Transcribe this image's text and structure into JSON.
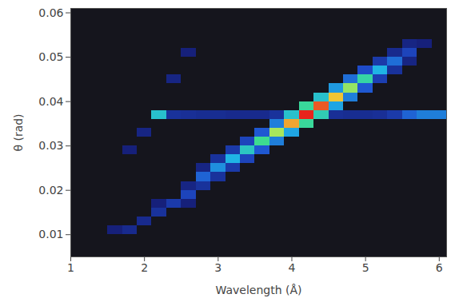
{
  "chart_data": {
    "type": "heatmap",
    "xlabel": "Wavelength (Å)",
    "ylabel": "θ (rad)",
    "xlim": [
      1,
      6.1
    ],
    "ylim": [
      0.005,
      0.061
    ],
    "xticks": [
      1,
      2,
      3,
      4,
      5,
      6
    ],
    "yticks": [
      0.01,
      0.02,
      0.03,
      0.04,
      0.05,
      0.06
    ],
    "cell_width": 0.2,
    "cell_height": 0.002,
    "cells": [
      [
        1.6,
        0.011,
        0.08
      ],
      [
        1.8,
        0.011,
        0.12
      ],
      [
        2.0,
        0.013,
        0.12
      ],
      [
        2.2,
        0.015,
        0.15
      ],
      [
        2.2,
        0.017,
        0.08
      ],
      [
        2.4,
        0.017,
        0.18
      ],
      [
        2.6,
        0.019,
        0.22
      ],
      [
        2.6,
        0.017,
        0.08
      ],
      [
        2.6,
        0.021,
        0.1
      ],
      [
        2.8,
        0.023,
        0.3
      ],
      [
        2.8,
        0.021,
        0.15
      ],
      [
        2.8,
        0.025,
        0.1
      ],
      [
        3.0,
        0.025,
        0.38
      ],
      [
        3.0,
        0.023,
        0.15
      ],
      [
        3.0,
        0.027,
        0.15
      ],
      [
        3.2,
        0.027,
        0.45
      ],
      [
        3.2,
        0.025,
        0.18
      ],
      [
        3.2,
        0.029,
        0.18
      ],
      [
        3.4,
        0.029,
        0.52
      ],
      [
        3.4,
        0.027,
        0.22
      ],
      [
        3.4,
        0.031,
        0.22
      ],
      [
        3.6,
        0.031,
        0.62
      ],
      [
        3.6,
        0.029,
        0.28
      ],
      [
        3.6,
        0.033,
        0.28
      ],
      [
        3.8,
        0.033,
        0.74
      ],
      [
        3.8,
        0.031,
        0.35
      ],
      [
        3.8,
        0.035,
        0.35
      ],
      [
        4.0,
        0.035,
        0.88
      ],
      [
        4.0,
        0.033,
        0.42
      ],
      [
        4.0,
        0.037,
        0.5
      ],
      [
        4.2,
        0.037,
        1.0
      ],
      [
        4.2,
        0.035,
        0.6
      ],
      [
        4.2,
        0.039,
        0.6
      ],
      [
        4.4,
        0.039,
        0.95
      ],
      [
        4.4,
        0.037,
        0.55
      ],
      [
        4.4,
        0.041,
        0.5
      ],
      [
        4.6,
        0.041,
        0.85
      ],
      [
        4.6,
        0.039,
        0.42
      ],
      [
        4.6,
        0.043,
        0.4
      ],
      [
        4.8,
        0.043,
        0.72
      ],
      [
        4.8,
        0.041,
        0.35
      ],
      [
        4.8,
        0.045,
        0.32
      ],
      [
        5.0,
        0.045,
        0.58
      ],
      [
        5.0,
        0.043,
        0.28
      ],
      [
        5.0,
        0.047,
        0.25
      ],
      [
        5.2,
        0.047,
        0.45
      ],
      [
        5.2,
        0.045,
        0.2
      ],
      [
        5.2,
        0.049,
        0.18
      ],
      [
        5.4,
        0.049,
        0.32
      ],
      [
        5.4,
        0.047,
        0.15
      ],
      [
        5.4,
        0.051,
        0.12
      ],
      [
        5.6,
        0.051,
        0.22
      ],
      [
        5.6,
        0.049,
        0.1
      ],
      [
        5.6,
        0.053,
        0.1
      ],
      [
        5.8,
        0.053,
        0.08
      ],
      [
        2.2,
        0.037,
        0.5
      ],
      [
        2.4,
        0.037,
        0.15
      ],
      [
        2.6,
        0.037,
        0.14
      ],
      [
        2.8,
        0.037,
        0.13
      ],
      [
        3.0,
        0.037,
        0.13
      ],
      [
        3.2,
        0.037,
        0.12
      ],
      [
        3.4,
        0.037,
        0.12
      ],
      [
        3.6,
        0.037,
        0.12
      ],
      [
        3.8,
        0.037,
        0.15
      ],
      [
        4.6,
        0.037,
        0.14
      ],
      [
        4.8,
        0.037,
        0.13
      ],
      [
        5.0,
        0.037,
        0.13
      ],
      [
        5.2,
        0.037,
        0.14
      ],
      [
        5.4,
        0.037,
        0.18
      ],
      [
        5.6,
        0.037,
        0.3
      ],
      [
        5.8,
        0.037,
        0.35
      ],
      [
        6.0,
        0.037,
        0.35
      ],
      [
        1.8,
        0.029,
        0.08
      ],
      [
        2.0,
        0.033,
        0.1
      ],
      [
        2.4,
        0.045,
        0.1
      ],
      [
        2.6,
        0.051,
        0.08
      ]
    ]
  }
}
